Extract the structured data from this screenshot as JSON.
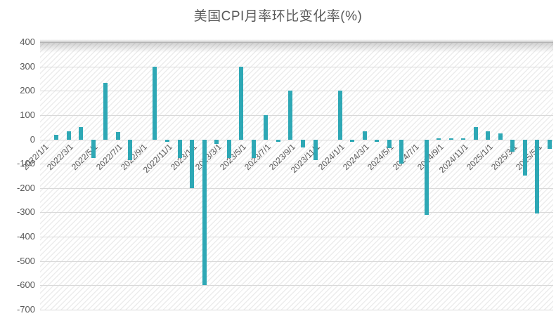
{
  "chart_data": {
    "type": "bar",
    "title": "美国CPI月率环比变化率(%)",
    "x": [
      "2022/1",
      "2022/2",
      "2022/3",
      "2022/4",
      "2022/5",
      "2022/6",
      "2022/7",
      "2022/8",
      "2022/9",
      "2022/10",
      "2022/11",
      "2022/12",
      "2023/1",
      "2023/2",
      "2023/3",
      "2023/4",
      "2023/5",
      "2023/6",
      "2023/7",
      "2023/8",
      "2023/9",
      "2023/10",
      "2023/11",
      "2023/12",
      "2024/1",
      "2024/2",
      "2024/3",
      "2024/4",
      "2024/5",
      "2024/6",
      "2024/7",
      "2024/8",
      "2024/9",
      "2024/10",
      "2024/11",
      "2024/12",
      "2025/1",
      "2025/2",
      "2025/3",
      "2025/4",
      "2025/5"
    ],
    "values": [
      20,
      33,
      50,
      -75,
      233,
      30,
      -85,
      null,
      300,
      -10,
      -75,
      -200,
      -600,
      -20,
      -75,
      300,
      -75,
      100,
      -10,
      200,
      -33,
      -85,
      null,
      200,
      -10,
      33,
      -10,
      -35,
      -100,
      null,
      -310,
      5,
      5,
      5,
      50,
      33,
      25,
      -50,
      -150,
      -305,
      -40
    ],
    "x_tick_labels": [
      "2022/1/1",
      "2022/3/1",
      "2022/5/1",
      "2022/7/1",
      "2022/9/1",
      "2022/11/1",
      "2023/1/1",
      "2023/3/1",
      "2023/5/1",
      "2023/7/1",
      "2023/9/1",
      "2023/11/1",
      "2024/1/1",
      "2024/3/1",
      "2024/5/1",
      "2024/7/1",
      "2024/9/1",
      "2024/11/1",
      "2025/1/1",
      "2025/3/1",
      "2025/5/1"
    ],
    "y_tick_labels": [
      "400",
      "300",
      "200",
      "100",
      "0",
      "-100",
      "-200",
      "-300",
      "-400",
      "-500",
      "-600",
      "-700"
    ],
    "ylim": [
      -700,
      400
    ],
    "y_tick_interval": 100,
    "grid": true,
    "xlabel": "",
    "ylabel": "",
    "legend": "none",
    "colors": {
      "bar": "#2ea8b5",
      "gridline": "#d9d9d9",
      "text": "#595959",
      "hatch_line": "#ececec",
      "background": "#ffffff"
    }
  }
}
